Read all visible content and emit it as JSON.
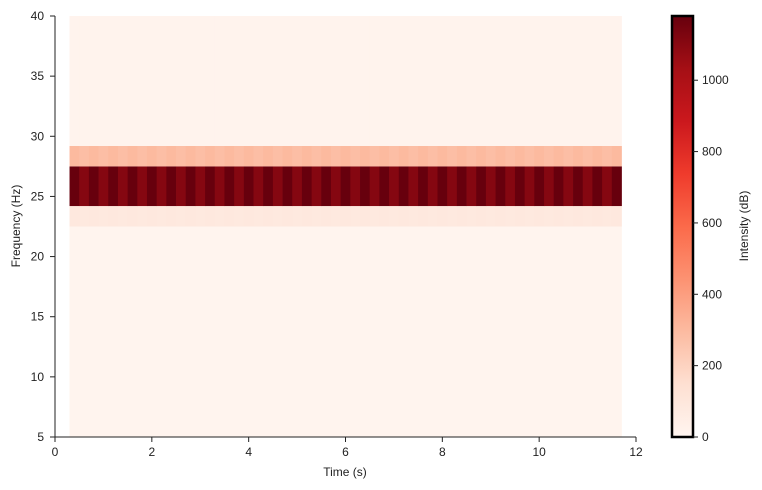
{
  "chart_data": {
    "type": "heatmap",
    "title": "",
    "xlabel": "Time (s)",
    "ylabel": "Frequency (Hz)",
    "colorbar_label": "Intensity (dB)",
    "colormap": "Reds",
    "xlim": [
      0,
      12
    ],
    "ylim": [
      5,
      40
    ],
    "x_ticks": [
      0,
      2,
      4,
      6,
      8,
      10,
      12
    ],
    "y_ticks": [
      5,
      10,
      15,
      20,
      25,
      30,
      35,
      40
    ],
    "time_range": [
      0.3,
      11.7
    ],
    "time_bins": 57,
    "colorbar_range": [
      0,
      1180
    ],
    "colorbar_ticks": [
      0,
      200,
      400,
      600,
      800,
      1000
    ],
    "grid": false,
    "bands": [
      {
        "freq_range": [
          5,
          22.5
        ],
        "intensity": 10
      },
      {
        "freq_range": [
          22.5,
          24.2
        ],
        "intensity": 90
      },
      {
        "freq_range": [
          24.2,
          27.5
        ],
        "intensity": 1180
      },
      {
        "freq_range": [
          27.5,
          29.2
        ],
        "intensity": 300
      },
      {
        "freq_range": [
          29.2,
          40
        ],
        "intensity": 15
      }
    ]
  }
}
